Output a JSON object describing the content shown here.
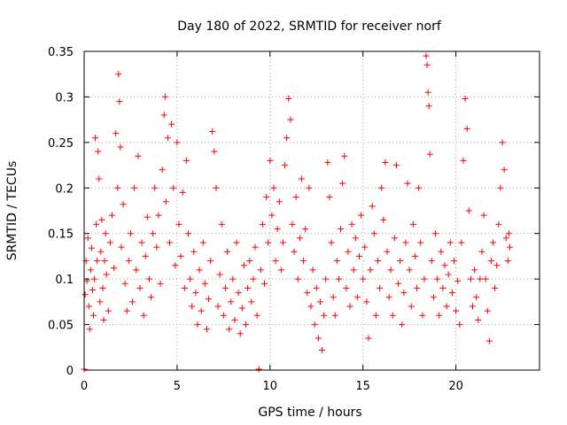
{
  "chart_data": {
    "type": "scatter",
    "title": "Day 180 of 2022, SRMTID for receiver norf",
    "xlabel": "GPS time / hours",
    "ylabel": "SRMTID / TECUs",
    "xlim": [
      0,
      24.5
    ],
    "ylim": [
      0,
      0.35
    ],
    "x_ticks": [
      0,
      5,
      10,
      15,
      20
    ],
    "x_tick_labels": [
      "0",
      "5",
      "10",
      "15",
      "20"
    ],
    "y_ticks": [
      0,
      0.05,
      0.1,
      0.15,
      0.2,
      0.25,
      0.3,
      0.35
    ],
    "y_tick_labels": [
      "0",
      "0.05",
      "0.1",
      "0.15",
      "0.2",
      "0.25",
      "0.3",
      "0.35"
    ],
    "grid": true,
    "legend": "none",
    "marker": "plus",
    "marker_color": "#ff0000",
    "series": [
      {
        "values_note": "",
        "points": [
          [
            0.0,
            0.001
          ],
          [
            0.05,
            0.083
          ],
          [
            0.1,
            0.12
          ],
          [
            0.15,
            0.098
          ],
          [
            0.2,
            0.145
          ],
          [
            0.25,
            0.07
          ],
          [
            0.3,
            0.045
          ],
          [
            0.35,
            0.11
          ],
          [
            0.4,
            0.134
          ],
          [
            0.45,
            0.088
          ],
          [
            0.5,
            0.06
          ],
          [
            0.55,
            0.1
          ],
          [
            0.6,
            0.255
          ],
          [
            0.65,
            0.16
          ],
          [
            0.7,
            0.12
          ],
          [
            0.75,
            0.24
          ],
          [
            0.8,
            0.21
          ],
          [
            0.85,
            0.075
          ],
          [
            0.9,
            0.13
          ],
          [
            0.95,
            0.165
          ],
          [
            1.0,
            0.09
          ],
          [
            1.05,
            0.055
          ],
          [
            1.1,
            0.12
          ],
          [
            1.15,
            0.15
          ],
          [
            1.2,
            0.105
          ],
          [
            1.3,
            0.065
          ],
          [
            1.4,
            0.14
          ],
          [
            1.5,
            0.17
          ],
          [
            1.6,
            0.112
          ],
          [
            1.7,
            0.26
          ],
          [
            1.8,
            0.2
          ],
          [
            1.85,
            0.325
          ],
          [
            1.9,
            0.295
          ],
          [
            1.95,
            0.245
          ],
          [
            2.0,
            0.135
          ],
          [
            2.1,
            0.182
          ],
          [
            2.2,
            0.095
          ],
          [
            2.3,
            0.065
          ],
          [
            2.4,
            0.12
          ],
          [
            2.5,
            0.15
          ],
          [
            2.6,
            0.075
          ],
          [
            2.7,
            0.2
          ],
          [
            2.8,
            0.11
          ],
          [
            2.9,
            0.235
          ],
          [
            3.0,
            0.09
          ],
          [
            3.1,
            0.14
          ],
          [
            3.2,
            0.06
          ],
          [
            3.3,
            0.125
          ],
          [
            3.4,
            0.168
          ],
          [
            3.5,
            0.1
          ],
          [
            3.6,
            0.08
          ],
          [
            3.7,
            0.15
          ],
          [
            3.8,
            0.2
          ],
          [
            3.9,
            0.135
          ],
          [
            4.0,
            0.17
          ],
          [
            4.1,
            0.095
          ],
          [
            4.2,
            0.22
          ],
          [
            4.3,
            0.28
          ],
          [
            4.35,
            0.3
          ],
          [
            4.4,
            0.185
          ],
          [
            4.5,
            0.255
          ],
          [
            4.6,
            0.14
          ],
          [
            4.7,
            0.27
          ],
          [
            4.8,
            0.2
          ],
          [
            4.9,
            0.115
          ],
          [
            5.0,
            0.25
          ],
          [
            5.1,
            0.16
          ],
          [
            5.2,
            0.125
          ],
          [
            5.3,
            0.195
          ],
          [
            5.4,
            0.09
          ],
          [
            5.5,
            0.23
          ],
          [
            5.6,
            0.15
          ],
          [
            5.7,
            0.1
          ],
          [
            5.8,
            0.07
          ],
          [
            5.9,
            0.13
          ],
          [
            6.0,
            0.085
          ],
          [
            6.1,
            0.05
          ],
          [
            6.2,
            0.11
          ],
          [
            6.3,
            0.065
          ],
          [
            6.4,
            0.14
          ],
          [
            6.5,
            0.095
          ],
          [
            6.6,
            0.045
          ],
          [
            6.7,
            0.078
          ],
          [
            6.8,
            0.12
          ],
          [
            6.9,
            0.262
          ],
          [
            7.0,
            0.24
          ],
          [
            7.1,
            0.2
          ],
          [
            7.2,
            0.07
          ],
          [
            7.3,
            0.105
          ],
          [
            7.4,
            0.16
          ],
          [
            7.5,
            0.06
          ],
          [
            7.6,
            0.09
          ],
          [
            7.7,
            0.13
          ],
          [
            7.8,
            0.045
          ],
          [
            7.9,
            0.075
          ],
          [
            8.0,
            0.1
          ],
          [
            8.1,
            0.055
          ],
          [
            8.2,
            0.14
          ],
          [
            8.3,
            0.085
          ],
          [
            8.4,
            0.04
          ],
          [
            8.5,
            0.068
          ],
          [
            8.6,
            0.115
          ],
          [
            8.7,
            0.05
          ],
          [
            8.8,
            0.09
          ],
          [
            8.9,
            0.12
          ],
          [
            9.0,
            0.075
          ],
          [
            9.1,
            0.1
          ],
          [
            9.2,
            0.135
          ],
          [
            9.3,
            0.06
          ],
          [
            9.4,
            0.001
          ],
          [
            9.5,
            0.11
          ],
          [
            9.6,
            0.16
          ],
          [
            9.7,
            0.095
          ],
          [
            9.8,
            0.19
          ],
          [
            9.9,
            0.14
          ],
          [
            10.0,
            0.23
          ],
          [
            10.1,
            0.17
          ],
          [
            10.2,
            0.2
          ],
          [
            10.3,
            0.12
          ],
          [
            10.4,
            0.155
          ],
          [
            10.5,
            0.185
          ],
          [
            10.6,
            0.11
          ],
          [
            10.7,
            0.14
          ],
          [
            10.8,
            0.225
          ],
          [
            10.9,
            0.255
          ],
          [
            11.0,
            0.298
          ],
          [
            11.1,
            0.275
          ],
          [
            11.2,
            0.16
          ],
          [
            11.3,
            0.13
          ],
          [
            11.4,
            0.19
          ],
          [
            11.5,
            0.1
          ],
          [
            11.6,
            0.145
          ],
          [
            11.7,
            0.21
          ],
          [
            11.8,
            0.12
          ],
          [
            11.9,
            0.155
          ],
          [
            12.0,
            0.085
          ],
          [
            12.1,
            0.2
          ],
          [
            12.2,
            0.07
          ],
          [
            12.3,
            0.11
          ],
          [
            12.4,
            0.05
          ],
          [
            12.5,
            0.09
          ],
          [
            12.6,
            0.035
          ],
          [
            12.7,
            0.075
          ],
          [
            12.8,
            0.022
          ],
          [
            12.9,
            0.06
          ],
          [
            13.0,
            0.1
          ],
          [
            13.1,
            0.228
          ],
          [
            13.2,
            0.19
          ],
          [
            13.3,
            0.14
          ],
          [
            13.4,
            0.08
          ],
          [
            13.5,
            0.06
          ],
          [
            13.6,
            0.12
          ],
          [
            13.7,
            0.1
          ],
          [
            13.8,
            0.155
          ],
          [
            13.9,
            0.205
          ],
          [
            14.0,
            0.235
          ],
          [
            14.1,
            0.09
          ],
          [
            14.2,
            0.13
          ],
          [
            14.3,
            0.07
          ],
          [
            14.4,
            0.16
          ],
          [
            14.5,
            0.11
          ],
          [
            14.6,
            0.145
          ],
          [
            14.7,
            0.08
          ],
          [
            14.8,
            0.125
          ],
          [
            14.9,
            0.17
          ],
          [
            15.0,
            0.1
          ],
          [
            15.1,
            0.135
          ],
          [
            15.2,
            0.075
          ],
          [
            15.3,
            0.035
          ],
          [
            15.4,
            0.11
          ],
          [
            15.5,
            0.18
          ],
          [
            15.6,
            0.15
          ],
          [
            15.7,
            0.06
          ],
          [
            15.8,
            0.12
          ],
          [
            15.9,
            0.09
          ],
          [
            16.0,
            0.2
          ],
          [
            16.1,
            0.165
          ],
          [
            16.2,
            0.228
          ],
          [
            16.3,
            0.13
          ],
          [
            16.4,
            0.08
          ],
          [
            16.5,
            0.11
          ],
          [
            16.6,
            0.06
          ],
          [
            16.7,
            0.145
          ],
          [
            16.8,
            0.225
          ],
          [
            16.9,
            0.095
          ],
          [
            17.0,
            0.12
          ],
          [
            17.1,
            0.05
          ],
          [
            17.2,
            0.085
          ],
          [
            17.3,
            0.14
          ],
          [
            17.4,
            0.205
          ],
          [
            17.5,
            0.11
          ],
          [
            17.6,
            0.07
          ],
          [
            17.7,
            0.16
          ],
          [
            17.8,
            0.125
          ],
          [
            17.9,
            0.09
          ],
          [
            18.0,
            0.2
          ],
          [
            18.1,
            0.14
          ],
          [
            18.2,
            0.06
          ],
          [
            18.3,
            0.1
          ],
          [
            18.4,
            0.345
          ],
          [
            18.45,
            0.335
          ],
          [
            18.5,
            0.305
          ],
          [
            18.55,
            0.29
          ],
          [
            18.6,
            0.237
          ],
          [
            18.7,
            0.12
          ],
          [
            18.8,
            0.08
          ],
          [
            18.9,
            0.15
          ],
          [
            19.0,
            0.1
          ],
          [
            19.1,
            0.06
          ],
          [
            19.2,
            0.13
          ],
          [
            19.3,
            0.09
          ],
          [
            19.4,
            0.115
          ],
          [
            19.5,
            0.07
          ],
          [
            19.6,
            0.105
          ],
          [
            19.7,
            0.14
          ],
          [
            19.8,
            0.085
          ],
          [
            19.9,
            0.12
          ],
          [
            20.0,
            0.065
          ],
          [
            20.1,
            0.098
          ],
          [
            20.2,
            0.05
          ],
          [
            20.3,
            0.14
          ],
          [
            20.4,
            0.23
          ],
          [
            20.5,
            0.298
          ],
          [
            20.6,
            0.265
          ],
          [
            20.7,
            0.175
          ],
          [
            20.8,
            0.1
          ],
          [
            20.9,
            0.07
          ],
          [
            21.0,
            0.11
          ],
          [
            21.1,
            0.08
          ],
          [
            21.2,
            0.055
          ],
          [
            21.3,
            0.1
          ],
          [
            21.4,
            0.13
          ],
          [
            21.5,
            0.17
          ],
          [
            21.6,
            0.1
          ],
          [
            21.7,
            0.065
          ],
          [
            21.8,
            0.032
          ],
          [
            21.9,
            0.12
          ],
          [
            22.0,
            0.14
          ],
          [
            22.1,
            0.09
          ],
          [
            22.2,
            0.115
          ],
          [
            22.3,
            0.16
          ],
          [
            22.4,
            0.2
          ],
          [
            22.5,
            0.25
          ],
          [
            22.6,
            0.22
          ],
          [
            22.7,
            0.145
          ],
          [
            22.8,
            0.12
          ],
          [
            22.85,
            0.15
          ],
          [
            22.9,
            0.135
          ]
        ]
      }
    ]
  }
}
